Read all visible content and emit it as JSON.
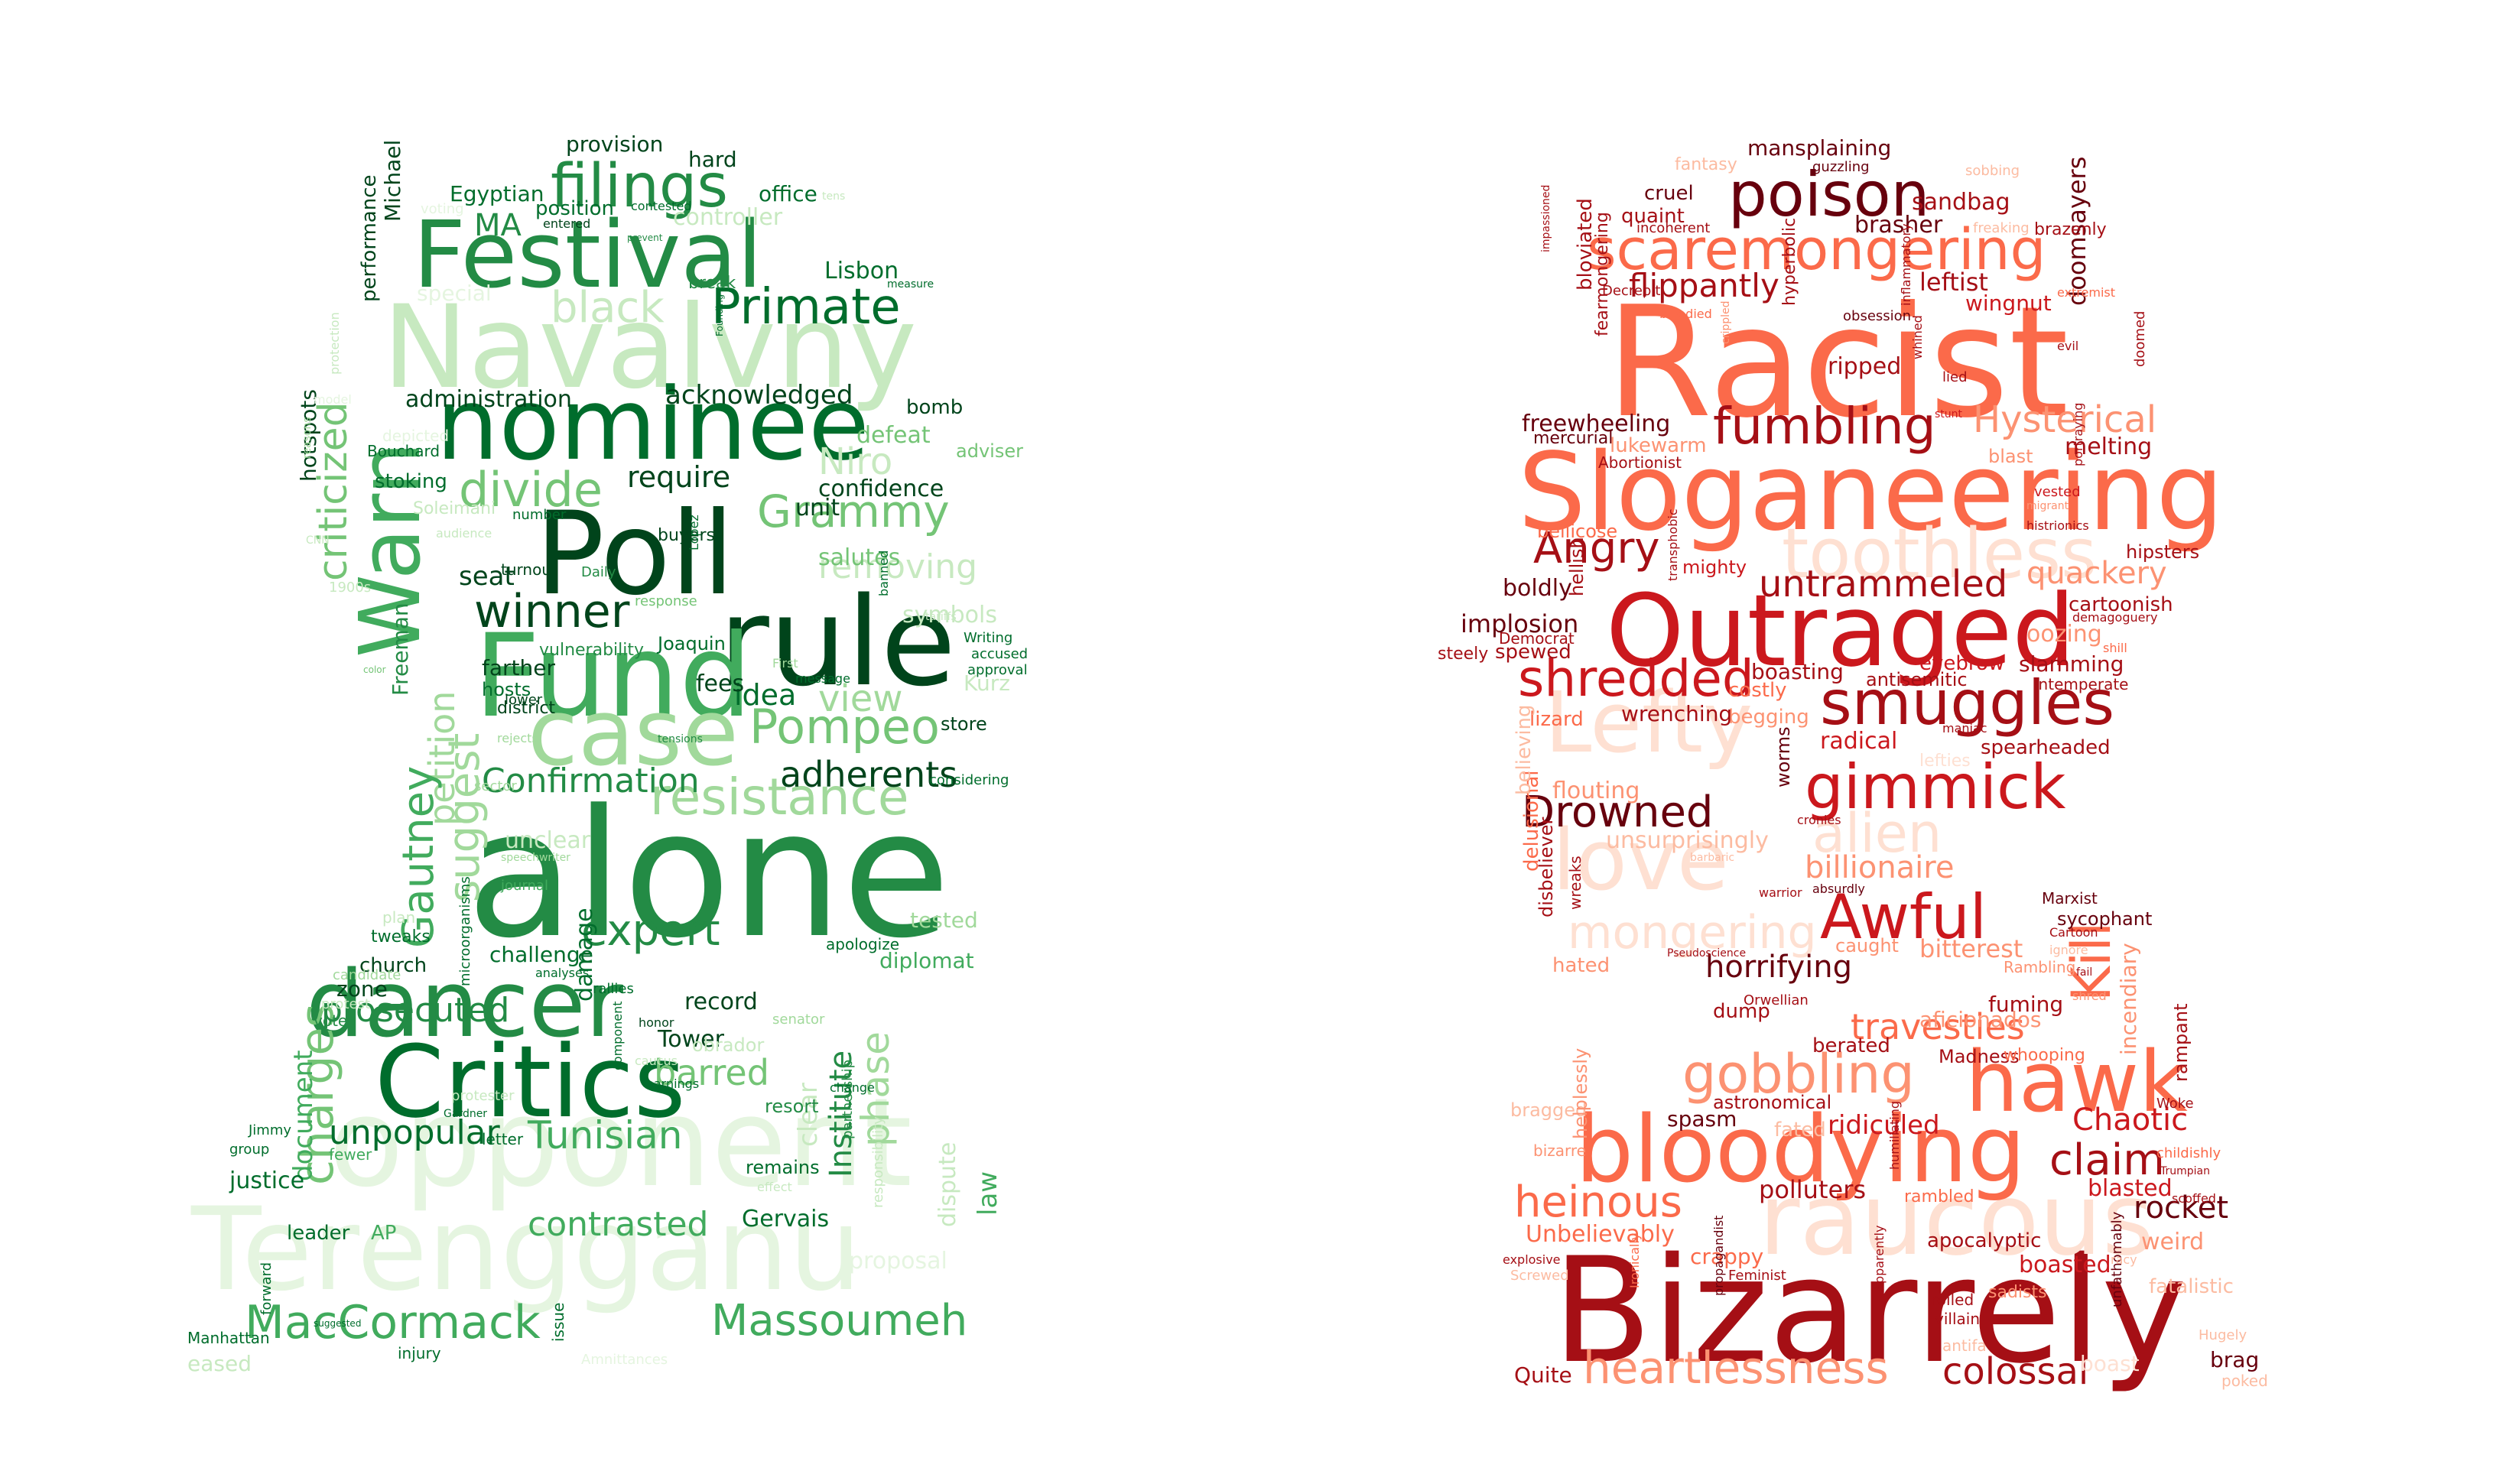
{
  "left_cloud": {
    "palette": "greens",
    "words": [
      "Terengganu",
      "opponent",
      "alone",
      "Navalvny",
      "rule",
      "Fund",
      "Poll",
      "nominee",
      "Warn",
      "Festival",
      "case",
      "Critics",
      "dancer",
      "MacCormack",
      "Massoumeh",
      "filings",
      "Primate",
      "divide",
      "winner",
      "resistance",
      "criticized",
      "charges",
      "Pompeo",
      "Grammy",
      "suggest",
      "Confirmation",
      "adherents",
      "expert",
      "petition",
      "Gautney",
      "Tunisian",
      "unpopular",
      "prosecuted",
      "contrasted",
      "phase",
      "view",
      "barred",
      "black",
      "acknowledged",
      "administration",
      "require",
      "confidence",
      "removing",
      "Niro",
      "seat",
      "idea",
      "fees",
      "MA",
      "Egyptian",
      "provision",
      "hard",
      "office",
      "Lisbon",
      "performance",
      "Michael",
      "hotspots",
      "protection",
      "Bouchard",
      "stoking",
      "Soleimani",
      "Freeman",
      "Joaquin",
      "symbols",
      "Writing",
      "accused",
      "approval",
      "Kurz",
      "store",
      "considering",
      "damage",
      "challenge",
      "microorganisms",
      "journal",
      "speechwriter",
      "unclear",
      "tested",
      "diplomat",
      "apologize",
      "record",
      "Tower",
      "church",
      "zone",
      "plan",
      "tweaks",
      "candidate",
      "protest",
      "vote",
      "document",
      "fewer",
      "letter",
      "protester",
      "Gardner",
      "remains",
      "Institute",
      "clear",
      "partnership",
      "responsibility",
      "dispute",
      "law",
      "proposal",
      "Gervais",
      "leader",
      "AP",
      "justice",
      "Jimmy",
      "group",
      "Manhattan",
      "forward",
      "eased",
      "suggested",
      "injury",
      "issue",
      "Amnittances",
      "position",
      "entered",
      "contested",
      "controller",
      "voting",
      "break",
      "measure",
      "tens",
      "Founding",
      "prevent",
      "special",
      "bomb",
      "defeat",
      "adviser",
      "salutes",
      "unit",
      "buyers",
      "Lopez",
      "turnout",
      "response",
      "Daily",
      "vulnerability",
      "farther",
      "hosts",
      "district",
      "lower",
      "message",
      "First",
      "tensions",
      "rejects",
      "number",
      "audience",
      "depicted",
      "reasons",
      "CNN",
      "1900s",
      "color",
      "model",
      "sector",
      "analyses",
      "rallies",
      "honor",
      "component",
      "obrador",
      "earnings",
      "caucus",
      "resort",
      "change",
      "effect",
      "senator",
      "banned",
      "tariffs"
    ]
  },
  "right_cloud": {
    "palette": "reds",
    "words": [
      "Bizarrely",
      "Racist",
      "Sloganeering",
      "Outraged",
      "raucous",
      "bloodying",
      "hawk",
      "Lefty",
      "toothless",
      "love",
      "poison",
      "smuggles",
      "gimmick",
      "scaremongering",
      "fumbling",
      "shredded",
      "Awful",
      "mongering",
      "heartlessness",
      "gobbling",
      "alien",
      "Angry",
      "Drowned",
      "Hysterical",
      "untrammeled",
      "colossal",
      "heinous",
      "claim",
      "Kill",
      "travesties",
      "billionaire",
      "flippantly",
      "horrifying",
      "quackery",
      "Chaotic",
      "rocket",
      "bitterest",
      "mansplaining",
      "sandbag",
      "brasher",
      "leftist",
      "wingnut",
      "doomsayers",
      "melting",
      "freewheeling",
      "lukewarm",
      "Abortionist",
      "mercurial",
      "bloviated",
      "fearmongering",
      "hyperbolic",
      "ripped",
      "obsession",
      "inflammatory",
      "lied",
      "whined",
      "stunt",
      "blast",
      "vested",
      "portraying",
      "migrant",
      "histrionics",
      "hipsters",
      "cartoonish",
      "demagoguery",
      "shill",
      "slamming",
      "intemperate",
      "oozing",
      "eyebrow",
      "antisemitic",
      "spearheaded",
      "radical",
      "maniac",
      "lefties",
      "boasting",
      "costly",
      "begging",
      "wrenching",
      "lizard",
      "spewed",
      "steely",
      "Democrat",
      "implosion",
      "boldly",
      "hellish",
      "transphobic",
      "mighty",
      "bellicose",
      "quaint",
      "cruel",
      "guzzling",
      "fantasy",
      "incoherent",
      "Decrepit",
      "impassioned",
      "bloodied",
      "crippled",
      "evil",
      "extremist",
      "doomed",
      "brazenly",
      "freaking",
      "sobbing",
      "flouting",
      "unsurprisingly",
      "worms",
      "cronies",
      "barbaric",
      "warrior",
      "absurdly",
      "Marxist",
      "Cartoon",
      "sycophant",
      "delusional",
      "disbeliever",
      "hated",
      "wreaks",
      "Pseudoscience",
      "caught",
      "Rambling",
      "ignore",
      "shred",
      "incendiary",
      "rampant",
      "fuming",
      "berated",
      "aficionados",
      "Orwellian",
      "dump",
      "Madness",
      "whooping",
      "Woke",
      "childishly",
      "Trumpian",
      "scoffed",
      "weird",
      "fatalistic",
      "bragged",
      "helplessly",
      "spasm",
      "astronomical",
      "fated",
      "ridiculed",
      "rambled",
      "blasted",
      "bizarre",
      "Unbelievably",
      "crappy",
      "polluters",
      "humiliating",
      "apocalyptic",
      "boasted",
      "explosive",
      "Screwed",
      "Feminist",
      "propagandist",
      "Apparently",
      "roiled",
      "villain",
      "sadists",
      "unfathomably",
      "Hugely",
      "brag",
      "poked",
      "Quite",
      "Ironically",
      "antifa",
      "boast",
      "believing",
      "fail",
      "racy"
    ]
  }
}
